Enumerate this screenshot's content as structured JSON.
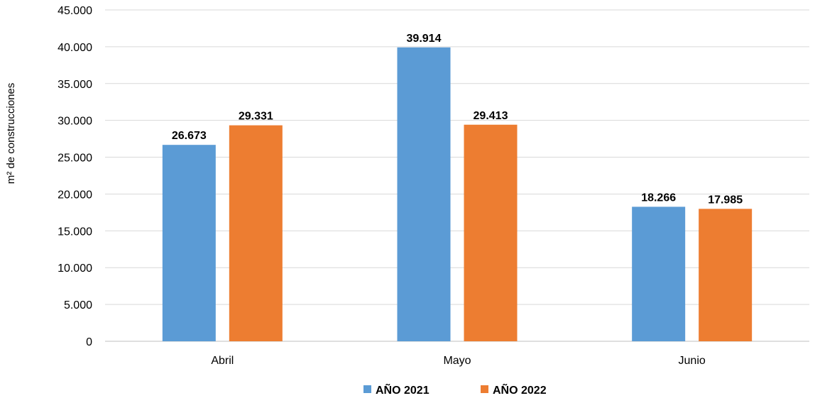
{
  "chart_data": {
    "type": "bar",
    "title": "",
    "xlabel": "",
    "ylabel": "m² de construcciones",
    "categories": [
      "Abril",
      "Mayo",
      "Junio"
    ],
    "series": [
      {
        "name": "AÑO 2021",
        "color": "#5B9BD5",
        "values": [
          26673,
          39914,
          18266
        ],
        "labels": [
          "26.673",
          "39.914",
          "18.266"
        ]
      },
      {
        "name": "AÑO 2022",
        "color": "#ED7D31",
        "values": [
          29331,
          29413,
          17985
        ],
        "labels": [
          "29.331",
          "29.413",
          "17.985"
        ]
      }
    ],
    "ylim": [
      0,
      45000
    ],
    "yticks": [
      0,
      5000,
      10000,
      15000,
      20000,
      25000,
      30000,
      35000,
      40000,
      45000
    ],
    "ytick_labels": [
      "0",
      "5.000",
      "10.000",
      "15.000",
      "20.000",
      "25.000",
      "30.000",
      "35.000",
      "40.000",
      "45.000"
    ],
    "grid": true,
    "legend_position": "bottom"
  }
}
